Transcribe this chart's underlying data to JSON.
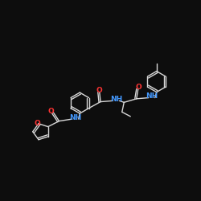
{
  "background_color": "#0d0d0d",
  "bond_color": "#d8d8d8",
  "atom_colors": {
    "N": "#4499ff",
    "O": "#ff3333",
    "C": "#d8d8d8"
  },
  "figsize": [
    2.5,
    2.5
  ],
  "dpi": 100,
  "xlim": [
    0,
    10
  ],
  "ylim": [
    0,
    10
  ]
}
